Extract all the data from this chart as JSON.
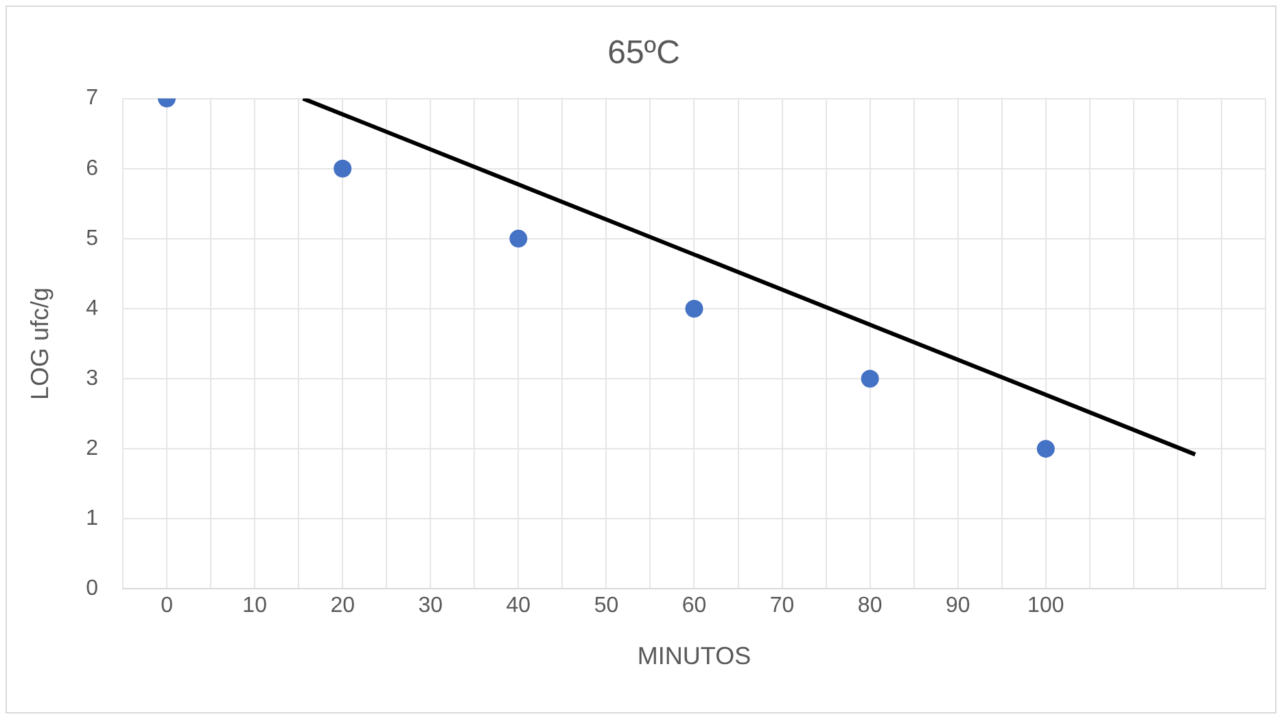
{
  "chart_data": {
    "type": "scatter",
    "title": "65ºC",
    "xlabel": "MINUTOS",
    "ylabel": "LOG ufc/g",
    "x": [
      0,
      20,
      40,
      60,
      80,
      100
    ],
    "series": [
      {
        "color": "#4472c4",
        "values": [
          7,
          6,
          5,
          4,
          3,
          2
        ]
      },
      {
        "type": "line",
        "color": "#000000",
        "x": [
          15.5,
          117
        ],
        "values": [
          7,
          1.92
        ],
        "marker": "none"
      }
    ],
    "xlim": [
      -5,
      125
    ],
    "xticks": [
      {
        "value": -5,
        "label": null
      },
      0,
      {
        "value": 5,
        "label": null
      },
      10,
      {
        "value": 15,
        "label": null
      },
      20,
      {
        "value": 25,
        "label": null
      },
      30,
      {
        "value": 35,
        "label": null
      },
      40,
      {
        "value": 45,
        "label": null
      },
      50,
      {
        "value": 55,
        "label": null
      },
      60,
      {
        "value": 65,
        "label": null
      },
      70,
      {
        "value": 75,
        "label": null
      },
      80,
      {
        "value": 85,
        "label": null
      },
      90,
      {
        "value": 95,
        "label": null
      },
      100,
      {
        "value": 105,
        "label": null
      },
      {
        "value": 110,
        "label": null
      },
      {
        "value": 115,
        "label": null
      },
      {
        "value": 120,
        "label": null
      },
      {
        "value": 125,
        "label": null
      }
    ],
    "ylim": [
      0,
      7
    ],
    "yticks": [
      0,
      1,
      2,
      3,
      4,
      5,
      6,
      7
    ],
    "grid": true,
    "legend": false,
    "marker": "circle"
  }
}
